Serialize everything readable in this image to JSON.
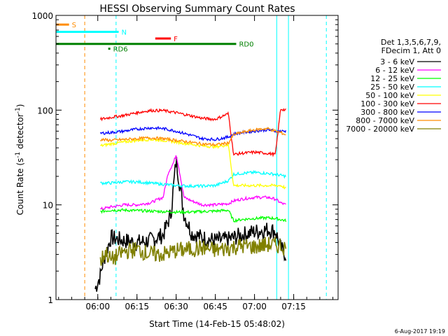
{
  "chart_data": {
    "type": "line",
    "title": "HESSI Observing Summary Count Rates",
    "xlabel": "Start Time (14-Feb-15 05:48:02)",
    "ylabel": "Count Rate (s⁻¹ detector⁻¹)",
    "ylabel_main": "Count Rate (s",
    "ylabel_sup1": "-1",
    "ylabel_mid": " detector",
    "ylabel_sup2": "-1",
    "ylabel_end": ")",
    "yscale": "log",
    "ylim": [
      1,
      1000
    ],
    "xlim_minutes": [
      -16,
      92
    ],
    "x_ticks": [
      {
        "min": 0,
        "label": "06:00"
      },
      {
        "min": 15,
        "label": "06:15"
      },
      {
        "min": 30,
        "label": "06:30"
      },
      {
        "min": 45,
        "label": "06:45"
      },
      {
        "min": 60,
        "label": "07:00"
      },
      {
        "min": 75,
        "label": "07:15"
      }
    ],
    "y_ticks": [
      {
        "value": 1,
        "label": "1"
      },
      {
        "value": 10,
        "label": "10"
      },
      {
        "value": 100,
        "label": "100"
      },
      {
        "value": 1000,
        "label": "1000"
      }
    ],
    "legend_header": [
      "Det 1,3,5,6,7,9,",
      "FDecim 1, Att 0"
    ],
    "legend_position": "right",
    "series": [
      {
        "name": "3 - 6 keV",
        "color": "#000000",
        "x": [
          -1,
          1,
          2,
          5,
          10,
          15,
          20,
          25,
          28,
          30,
          33,
          36,
          40,
          45,
          50,
          55,
          60,
          65,
          68,
          70,
          72
        ],
        "y": [
          1.3,
          1.8,
          2.5,
          4.5,
          4.2,
          4.0,
          4.2,
          4.8,
          8,
          30,
          8,
          5,
          4.5,
          4.2,
          4.3,
          4.8,
          5.2,
          5.5,
          5.3,
          3.5,
          3.0
        ]
      },
      {
        "name": "6 - 12 keV",
        "color": "#ff00ff",
        "x": [
          1,
          5,
          10,
          15,
          20,
          25,
          27,
          29,
          30,
          31,
          33,
          36,
          40,
          45,
          50,
          52,
          55,
          60,
          65,
          68,
          70,
          72
        ],
        "y": [
          9,
          9.5,
          10,
          10,
          10.5,
          12,
          22,
          28,
          34,
          25,
          12,
          11,
          10,
          10,
          10.3,
          11,
          11.5,
          12,
          12,
          11.5,
          10.5,
          10
        ]
      },
      {
        "name": "12 - 25 keV",
        "color": "#00ff00",
        "x": [
          1,
          5,
          10,
          15,
          20,
          25,
          30,
          35,
          40,
          45,
          50,
          52,
          55,
          60,
          65,
          68,
          70,
          72
        ],
        "y": [
          8.5,
          8.8,
          8.8,
          8.7,
          8.6,
          8.5,
          8.4,
          8.4,
          8.5,
          8.6,
          8.8,
          6.8,
          7.0,
          7.2,
          7.3,
          7.2,
          7.0,
          6.8
        ]
      },
      {
        "name": "25 - 50 keV",
        "color": "#00ffff",
        "x": [
          1,
          5,
          10,
          15,
          20,
          25,
          30,
          35,
          40,
          45,
          50,
          52,
          55,
          60,
          65,
          68,
          70,
          72
        ],
        "y": [
          17,
          17,
          17.5,
          17.5,
          17,
          16.5,
          16,
          15.8,
          15.8,
          16,
          18,
          21,
          21.5,
          22,
          21.5,
          21,
          20.5,
          20
        ]
      },
      {
        "name": "50 - 100 keV",
        "color": "#ffff00",
        "x": [
          1,
          5,
          10,
          15,
          20,
          25,
          30,
          35,
          40,
          45,
          50,
          52,
          55,
          60,
          65,
          68,
          70,
          72
        ],
        "y": [
          42,
          44,
          46,
          48,
          49,
          48,
          46,
          44,
          42,
          41,
          43,
          16,
          16,
          16,
          16,
          16,
          16,
          15
        ]
      },
      {
        "name": "100 - 300 keV",
        "color": "#ff0000",
        "x": [
          1,
          5,
          10,
          15,
          20,
          25,
          30,
          35,
          40,
          45,
          50,
          52,
          55,
          60,
          65,
          68,
          70,
          72
        ],
        "y": [
          80,
          84,
          88,
          94,
          99,
          99,
          94,
          88,
          82,
          80,
          92,
          34,
          35,
          36,
          35,
          34,
          103,
          100
        ]
      },
      {
        "name": "300 - 800 keV",
        "color": "#0000ff",
        "x": [
          1,
          5,
          10,
          15,
          20,
          25,
          30,
          35,
          40,
          45,
          50,
          52,
          55,
          60,
          65,
          68,
          70,
          72
        ],
        "y": [
          57,
          58,
          60,
          63,
          65,
          64,
          60,
          55,
          50,
          49,
          52,
          56,
          58,
          60,
          62,
          60,
          60,
          60
        ]
      },
      {
        "name": "800 - 7000 keV",
        "color": "#ff8c00",
        "x": [
          1,
          5,
          10,
          15,
          20,
          25,
          30,
          35,
          40,
          45,
          50,
          52,
          55,
          60,
          65,
          68,
          70,
          72
        ],
        "y": [
          49,
          48,
          49,
          50,
          51,
          50,
          48,
          46,
          44,
          43,
          45,
          55,
          58,
          62,
          64,
          60,
          58,
          55
        ]
      },
      {
        "name": "7000 - 20000 keV",
        "color": "#808000",
        "x": [
          1,
          3,
          5,
          10,
          15,
          20,
          25,
          30,
          35,
          40,
          45,
          50,
          55,
          60,
          65,
          70,
          72
        ],
        "y": [
          2.5,
          3.2,
          2.6,
          3.2,
          3.4,
          3.0,
          3.0,
          3.3,
          3.4,
          3.5,
          3.3,
          3.5,
          3.7,
          3.6,
          3.8,
          3.7,
          3.5
        ]
      }
    ],
    "attenuator_flags": [
      {
        "label": "S",
        "color": "#ff8c00",
        "x_start": -16,
        "x_end": -11,
        "y": 800
      },
      {
        "label": "N",
        "color": "#00ffff",
        "x_start": -16,
        "x_end": 8,
        "y": 670
      },
      {
        "label": "F",
        "color": "#ff0000",
        "x_start": 22,
        "x_end": 28,
        "y": 570
      },
      {
        "label": "RD0",
        "color": "#008000",
        "x_start": -16,
        "x_end": 53,
        "y": 500
      },
      {
        "label": "RD6",
        "color": "#008000",
        "x_start": 4,
        "x_end": 4.8,
        "y": 445
      }
    ],
    "footer": "6-Aug-2017 19:19"
  }
}
